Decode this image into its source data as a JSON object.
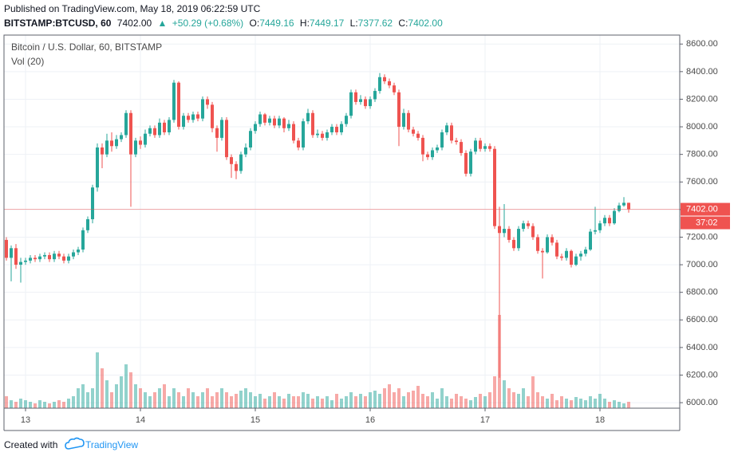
{
  "header": {
    "published": "Published on TradingView.com, May 18, 2019 06:22:59 UTC",
    "symbol": "BITSTAMP:BTCUSD, 60",
    "arrow": "▲",
    "change": "+50.29 (+0.68%)",
    "ohlc_names": [
      "O:",
      "H:",
      "L:",
      "C:"
    ]
  },
  "chart_data": {
    "type": "candlestick",
    "title": "Bitcoin / U.S. Dollar, 60, BITSTAMP",
    "volume_title": "Vol (20)",
    "categories": [
      null,
      null,
      null,
      null,
      "13",
      null,
      null,
      null,
      null,
      null,
      null,
      null,
      null,
      null,
      null,
      null,
      null,
      null,
      null,
      null,
      null,
      null,
      null,
      null,
      null,
      null,
      null,
      null,
      "14",
      null,
      null,
      null,
      null,
      null,
      null,
      null,
      null,
      null,
      null,
      null,
      null,
      null,
      null,
      null,
      null,
      null,
      null,
      null,
      null,
      null,
      null,
      null,
      "15",
      null,
      null,
      null,
      null,
      null,
      null,
      null,
      null,
      null,
      null,
      null,
      null,
      null,
      null,
      null,
      null,
      null,
      null,
      null,
      null,
      null,
      null,
      null,
      "16",
      null,
      null,
      null,
      null,
      null,
      null,
      null,
      null,
      null,
      null,
      null,
      null,
      null,
      null,
      null,
      null,
      null,
      null,
      null,
      null,
      null,
      null,
      null,
      "17",
      null,
      null,
      null,
      null,
      null,
      null,
      null,
      null,
      null,
      null,
      null,
      null,
      null,
      null,
      null,
      null,
      null,
      null,
      null,
      null,
      null,
      null,
      null,
      "18",
      null,
      null,
      null,
      null,
      null,
      null
    ],
    "open": [
      7180,
      7050,
      7120,
      7000,
      7020,
      7030,
      7050,
      7040,
      7060,
      7070,
      7040,
      7080,
      7060,
      7030,
      7060,
      7090,
      7110,
      7250,
      7330,
      7560,
      7850,
      7800,
      7900,
      7860,
      7910,
      7940,
      8100,
      7800,
      7900,
      7870,
      7950,
      7990,
      7940,
      8030,
      7960,
      8050,
      8320,
      8000,
      8080,
      8050,
      8090,
      8060,
      8200,
      8160,
      7990,
      7920,
      8050,
      7780,
      7730,
      7680,
      7800,
      7850,
      7970,
      8020,
      8090,
      8030,
      8060,
      8010,
      8060,
      7990,
      8020,
      7900,
      7850,
      8040,
      8100,
      7940,
      7950,
      7920,
      7960,
      8000,
      7960,
      8020,
      8080,
      8250,
      8180,
      8200,
      8150,
      8200,
      8260,
      8360,
      8330,
      8300,
      8250,
      8000,
      8100,
      7980,
      7950,
      7920,
      7800,
      7780,
      7830,
      7850,
      7960,
      8010,
      7900,
      7890,
      7810,
      7660,
      7820,
      7900,
      7840,
      7860,
      7840,
      7280,
      7230,
      7260,
      7180,
      7120,
      7260,
      7300,
      7280,
      7200,
      7100,
      7090,
      7200,
      7160,
      7060,
      7050,
      7100,
      7000,
      7060,
      7080,
      7110,
      7240,
      7250,
      7300,
      7340,
      7300,
      7390,
      7430,
      7449.16
    ],
    "high": [
      7200,
      7140,
      7150,
      7050,
      7050,
      7070,
      7070,
      7080,
      7090,
      7090,
      7100,
      7100,
      7080,
      7080,
      7110,
      7130,
      7270,
      7350,
      7580,
      7880,
      7880,
      7950,
      7960,
      7940,
      7960,
      8120,
      8120,
      7920,
      7930,
      7980,
      8010,
      8010,
      8060,
      8050,
      8070,
      8340,
      8330,
      8100,
      8100,
      8110,
      8110,
      8220,
      8220,
      8180,
      8010,
      8070,
      8070,
      7800,
      7750,
      7820,
      7880,
      7990,
      8040,
      8110,
      8100,
      8080,
      8080,
      8080,
      8070,
      8050,
      8040,
      7920,
      8060,
      8130,
      8120,
      7980,
      7970,
      7980,
      8020,
      8020,
      8040,
      8100,
      8270,
      8270,
      8230,
      8220,
      8220,
      8280,
      8390,
      8380,
      8350,
      8320,
      8270,
      8130,
      8120,
      8000,
      7970,
      7940,
      7820,
      7850,
      7870,
      7980,
      8030,
      8030,
      7920,
      7910,
      7830,
      7840,
      7920,
      7920,
      7880,
      7880,
      7860,
      7420,
      7440,
      7280,
      7200,
      7280,
      7320,
      7320,
      7300,
      7220,
      7120,
      7220,
      7220,
      7180,
      7080,
      7120,
      7110,
      7080,
      7100,
      7130,
      7260,
      7420,
      7320,
      7360,
      7360,
      7410,
      7450,
      7490,
      7449.17
    ],
    "low": [
      7030,
      6880,
      6970,
      6870,
      7000,
      7010,
      7020,
      7020,
      7040,
      7020,
      7020,
      7040,
      7010,
      7010,
      7040,
      7070,
      7090,
      7230,
      7300,
      7530,
      7700,
      7780,
      7820,
      7840,
      7890,
      7920,
      7420,
      7780,
      7840,
      7850,
      7930,
      7920,
      7920,
      7940,
      7940,
      8030,
      7980,
      7980,
      8030,
      8030,
      8040,
      8040,
      8130,
      7960,
      7820,
      7900,
      7760,
      7630,
      7620,
      7660,
      7780,
      7830,
      7950,
      8000,
      8010,
      8010,
      7990,
      7990,
      7960,
      7970,
      7880,
      7830,
      7830,
      8020,
      7920,
      7920,
      7900,
      7900,
      7940,
      7940,
      7940,
      8000,
      8060,
      8160,
      8160,
      8130,
      8130,
      8180,
      8240,
      8310,
      8280,
      8230,
      7860,
      7980,
      7960,
      7930,
      7900,
      7750,
      7760,
      7760,
      7810,
      7830,
      7940,
      7880,
      7870,
      7790,
      7640,
      7640,
      7800,
      7820,
      7820,
      7820,
      7260,
      6180,
      7200,
      7160,
      7100,
      7100,
      7240,
      7260,
      7180,
      7080,
      6900,
      7080,
      7140,
      7040,
      7030,
      7030,
      6980,
      6990,
      7030,
      7060,
      7100,
      7220,
      7230,
      7280,
      7280,
      7290,
      7380,
      7420,
      7377.62
    ],
    "close": [
      7050,
      7120,
      7000,
      7020,
      7030,
      7050,
      7040,
      7060,
      7070,
      7040,
      7080,
      7060,
      7030,
      7060,
      7090,
      7110,
      7250,
      7330,
      7560,
      7850,
      7800,
      7900,
      7860,
      7910,
      7940,
      8100,
      7800,
      7900,
      7870,
      7950,
      7990,
      7940,
      8030,
      7960,
      8050,
      8320,
      8000,
      8080,
      8050,
      8090,
      8060,
      8200,
      8160,
      7990,
      7920,
      8050,
      7780,
      7730,
      7680,
      7800,
      7850,
      7970,
      8020,
      8090,
      8030,
      8060,
      8010,
      8060,
      7990,
      8020,
      7900,
      7850,
      8040,
      8100,
      7940,
      7950,
      7920,
      7960,
      8000,
      7960,
      8020,
      8080,
      8250,
      8180,
      8200,
      8150,
      8200,
      8260,
      8360,
      8330,
      8300,
      8250,
      8000,
      8100,
      7980,
      7950,
      7920,
      7800,
      7780,
      7830,
      7850,
      7960,
      8010,
      7900,
      7890,
      7810,
      7660,
      7820,
      7900,
      7840,
      7860,
      7840,
      7280,
      7230,
      7260,
      7180,
      7120,
      7260,
      7300,
      7280,
      7200,
      7100,
      7090,
      7200,
      7160,
      7060,
      7050,
      7100,
      7000,
      7060,
      7080,
      7110,
      7240,
      7250,
      7300,
      7340,
      7300,
      7390,
      7430,
      7449.16,
      7402
    ],
    "volume": [
      15,
      10,
      8,
      12,
      10,
      8,
      6,
      10,
      8,
      6,
      8,
      10,
      8,
      12,
      15,
      25,
      30,
      20,
      25,
      70,
      50,
      35,
      20,
      30,
      40,
      55,
      45,
      30,
      25,
      20,
      15,
      20,
      25,
      30,
      15,
      25,
      20,
      15,
      25,
      20,
      15,
      20,
      25,
      15,
      20,
      25,
      20,
      15,
      18,
      22,
      25,
      20,
      15,
      18,
      12,
      15,
      20,
      15,
      12,
      18,
      15,
      15,
      20,
      18,
      12,
      15,
      12,
      15,
      10,
      18,
      12,
      15,
      20,
      15,
      18,
      15,
      20,
      22,
      18,
      25,
      30,
      20,
      25,
      15,
      20,
      22,
      28,
      18,
      15,
      20,
      12,
      25,
      15,
      12,
      18,
      15,
      12,
      10,
      14,
      18,
      15,
      20,
      40,
      117,
      35,
      25,
      20,
      18,
      25,
      15,
      40,
      20,
      15,
      12,
      18,
      10,
      15,
      12,
      10,
      14,
      12,
      10,
      15,
      12,
      18,
      12,
      8,
      10,
      8,
      6,
      8
    ],
    "last_price_label": "7402.00",
    "countdown": "37:02",
    "ylim": [
      5960,
      8665
    ],
    "yticks": [
      {
        "value": 6000,
        "label": "6000.00"
      },
      {
        "value": 6200,
        "label": "6200.00"
      },
      {
        "value": 6400,
        "label": "6400.00"
      },
      {
        "value": 6600,
        "label": "6600.00"
      },
      {
        "value": 6800,
        "label": "6800.00"
      },
      {
        "value": 7000,
        "label": "7000.00"
      },
      {
        "value": 7200,
        "label": "7200.00"
      },
      {
        "value": 7400,
        "label": "7400.00"
      },
      {
        "value": 7600,
        "label": "7600.00"
      },
      {
        "value": 7800,
        "label": "7800.00"
      },
      {
        "value": 8000,
        "label": "8000.00"
      },
      {
        "value": 8200,
        "label": "8200.00"
      },
      {
        "value": 8400,
        "label": "8400.00"
      },
      {
        "value": 8600,
        "label": "8600.00"
      }
    ],
    "up_color": "#26a69a",
    "down_color": "#ef5350",
    "grid": true
  },
  "footer": {
    "text": "Created with",
    "brand": "TradingView"
  }
}
